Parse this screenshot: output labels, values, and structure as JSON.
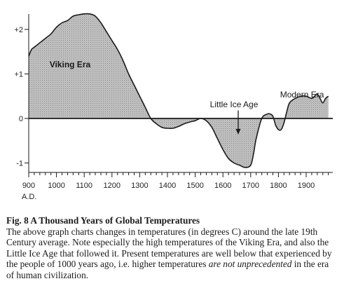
{
  "chart_data": {
    "type": "area",
    "baseline": 0,
    "x": [
      900,
      910,
      920,
      930,
      940,
      960,
      980,
      1000,
      1020,
      1040,
      1060,
      1080,
      1100,
      1120,
      1140,
      1160,
      1180,
      1200,
      1220,
      1240,
      1260,
      1280,
      1300,
      1320,
      1340,
      1360,
      1380,
      1400,
      1420,
      1440,
      1460,
      1480,
      1500,
      1520,
      1540,
      1560,
      1580,
      1600,
      1620,
      1640,
      1660,
      1680,
      1700,
      1710,
      1720,
      1740,
      1760,
      1770,
      1780,
      1790,
      1800,
      1810,
      1820,
      1830,
      1840,
      1860,
      1880,
      1900,
      1920,
      1930,
      1940,
      1950,
      1960,
      1970,
      1980
    ],
    "y": [
      1.4,
      1.55,
      1.6,
      1.65,
      1.7,
      1.8,
      1.9,
      2.05,
      2.15,
      2.2,
      2.3,
      2.33,
      2.35,
      2.35,
      2.3,
      2.15,
      1.95,
      1.75,
      1.55,
      1.3,
      1.0,
      0.75,
      0.5,
      0.25,
      0.0,
      -0.12,
      -0.2,
      -0.22,
      -0.22,
      -0.18,
      -0.12,
      -0.08,
      -0.05,
      0.0,
      -0.05,
      -0.2,
      -0.45,
      -0.7,
      -0.9,
      -1.0,
      -1.05,
      -1.1,
      -1.05,
      -0.8,
      -0.45,
      0.0,
      0.1,
      0.1,
      0.05,
      -0.15,
      -0.25,
      -0.25,
      -0.1,
      0.15,
      0.35,
      0.45,
      0.5,
      0.5,
      0.45,
      0.5,
      0.55,
      0.45,
      0.35,
      0.45,
      0.5
    ],
    "xlim": [
      900,
      1980
    ],
    "ylim": [
      -1.3,
      2.5
    ],
    "x_ticks": [
      900,
      1000,
      1100,
      1200,
      1300,
      1400,
      1500,
      1600,
      1700,
      1800,
      1900
    ],
    "x_tick_labels": [
      "900",
      "1000",
      "1100",
      "1200",
      "1300",
      "1400",
      "1500",
      "1600",
      "1700",
      "1800",
      "1900"
    ],
    "x_unit_label": "A.D.",
    "y_ticks": [
      2,
      1,
      0,
      -1
    ],
    "y_tick_labels": [
      "+2",
      "+1",
      "0",
      "-1"
    ],
    "annotations": {
      "viking": "Viking Era",
      "modern": "Modern Era",
      "little_ice_age": "Little Ice Age"
    },
    "grid": false,
    "fill": "stippled gray",
    "colors": {
      "fill": "#c4c4c4",
      "stipple": "#8a8a8a",
      "line": "#1a1a1a",
      "text": "#1a1a1a"
    }
  },
  "caption": {
    "title": "Fig. 8   A Thousand Years of Global Temperatures",
    "text_before": "The above graph charts changes in temperatures (in degrees C) around the late 19th Century average. Note especially the high temperatures of the Viking Era, and also the Little Ice Age that followed it. Present temperatures are well below that experienced by the people of 1000 years ago, i.e. higher temperatures ",
    "text_emphasis": "are not unprecedented",
    "text_after": " in the era of human civilization."
  }
}
